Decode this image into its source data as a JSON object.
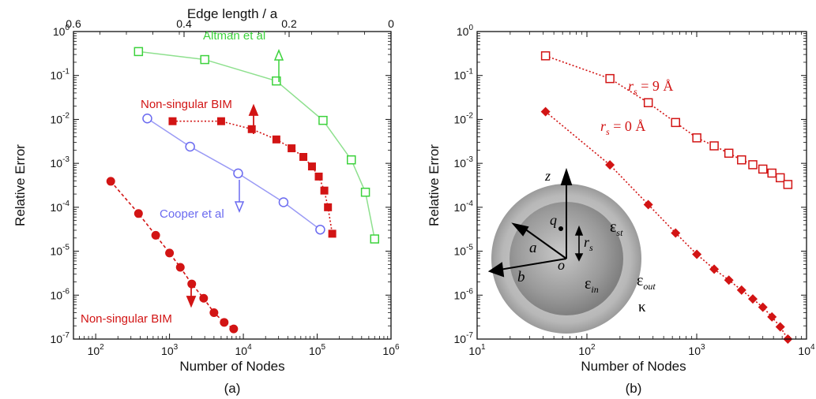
{
  "panels": {
    "a": {
      "caption": "(a)"
    },
    "b": {
      "caption": "(b)"
    }
  },
  "colors": {
    "green": "#3cd23c",
    "red": "#d21414",
    "blue": "#6a6af0",
    "lightblue": "#9a9af5",
    "lightgreen": "#8ee08e"
  },
  "chart_data": [
    {
      "type": "line",
      "panel": "a",
      "xlabel": "Number of Nodes",
      "ylabel": "Relative Error",
      "x2label": "Edge length / a",
      "xscale": "log",
      "yscale": "log",
      "xlim": [
        50,
        1000000
      ],
      "ylim": [
        1e-07,
        1
      ],
      "x_ticks": [
        "10^2",
        "10^3",
        "10^4",
        "10^5",
        "10^6"
      ],
      "y_ticks": [
        "10^-7",
        "10^-6",
        "10^-5",
        "10^-4",
        "10^-3",
        "10^-2",
        "10^-1",
        "10^0"
      ],
      "x2_ticks": [
        "0.6",
        "0.4",
        "0.2",
        "0"
      ],
      "series": [
        {
          "name": "Altman et al",
          "color": "#3cd23c",
          "marker": "square-open",
          "line": "solid",
          "x": [
            380,
            3000,
            28000,
            120000,
            290000,
            450000,
            600000
          ],
          "y": [
            0.35,
            0.23,
            0.075,
            0.0095,
            0.0012,
            0.00022,
            1.9e-05
          ]
        },
        {
          "name": "Non-singular BIM",
          "color": "#d21414",
          "marker": "square-filled",
          "line": "dotted",
          "x": [
            1100,
            5000,
            13000,
            28000,
            45000,
            65000,
            85000,
            105000,
            125000,
            140000,
            160000
          ],
          "y": [
            0.0091,
            0.0091,
            0.006,
            0.0035,
            0.0022,
            0.0014,
            0.00085,
            0.0005,
            0.00024,
            0.0001,
            2.5e-05
          ]
        },
        {
          "name": "Cooper et al",
          "color": "#6a6af0",
          "marker": "circle-open",
          "line": "solid",
          "x": [
            500,
            1900,
            8500,
            35000,
            110000
          ],
          "y": [
            0.0105,
            0.0024,
            0.00059,
            0.00013,
            3.1e-05
          ]
        },
        {
          "name": "Non-singular BIM",
          "color": "#d21414",
          "marker": "circle-filled",
          "line": "dashed",
          "x": [
            160,
            380,
            650,
            1000,
            1400,
            2000,
            2900,
            4000,
            5500,
            7400
          ],
          "y": [
            0.00039,
            7.2e-05,
            2.3e-05,
            9.1e-06,
            4.3e-06,
            1.8e-06,
            8.5e-07,
            4e-07,
            2.4e-07,
            1.7e-07
          ]
        }
      ],
      "annotations": [
        "Altman et al",
        "Non-singular BIM",
        "Cooper et al",
        "Non-singular BIM"
      ]
    },
    {
      "type": "line",
      "panel": "b",
      "xlabel": "Number of Nodes",
      "ylabel": "Relative Error",
      "xscale": "log",
      "yscale": "log",
      "xlim": [
        10,
        10000
      ],
      "ylim": [
        1e-07,
        1
      ],
      "x_ticks": [
        "10^1",
        "10^2",
        "10^3",
        "10^4"
      ],
      "y_ticks": [
        "10^-7",
        "10^-6",
        "10^-5",
        "10^-4",
        "10^-3",
        "10^-2",
        "10^-1",
        "10^0"
      ],
      "series": [
        {
          "name": "r_s = 9 Å",
          "color": "#d21414",
          "marker": "square-open",
          "line": "dotted",
          "x": [
            42,
            162,
            362,
            642,
            1002,
            1442,
            1962,
            2562,
            3242,
            4002,
            4842,
            5762,
            6762
          ],
          "y": [
            0.28,
            0.085,
            0.024,
            0.0085,
            0.0038,
            0.0025,
            0.0017,
            0.0012,
            0.00093,
            0.00074,
            0.0006,
            0.00047,
            0.00033
          ]
        },
        {
          "name": "r_s = 0 Å",
          "color": "#d21414",
          "marker": "diamond-filled",
          "line": "dotted",
          "x": [
            42,
            162,
            362,
            642,
            1002,
            1442,
            1962,
            2562,
            3242,
            4002,
            4842,
            5762,
            6762
          ],
          "y": [
            0.015,
            0.00092,
            0.000115,
            2.6e-05,
            8.5e-06,
            3.9e-06,
            2.2e-06,
            1.3e-06,
            8.2e-07,
            5.3e-07,
            3.2e-07,
            1.9e-07,
            1e-07
          ]
        }
      ],
      "annotations": [
        "r_s = 9 Å",
        "r_s = 0 Å"
      ]
    }
  ],
  "labels_a": {
    "x2label": "Edge length / a",
    "altman": "Altman et al",
    "nsbim_top": "Non-singular BIM",
    "cooper": "Cooper et al",
    "nsbim_bottom": "Non-singular BIM"
  },
  "labels_b": {
    "rs_symbol": "r",
    "rs_sub": "s",
    "rs9_value": " = 9 Å",
    "rs0_value": " = 0 Å"
  },
  "inset": {
    "z": "z",
    "q": "q",
    "a": "a",
    "b": "b",
    "o": "o",
    "r": "r",
    "r_sub": "s",
    "eps": "ε",
    "eps_st_sub": "st",
    "eps_in_sub": "in",
    "eps_out_sub": "out",
    "kappa": "κ"
  }
}
